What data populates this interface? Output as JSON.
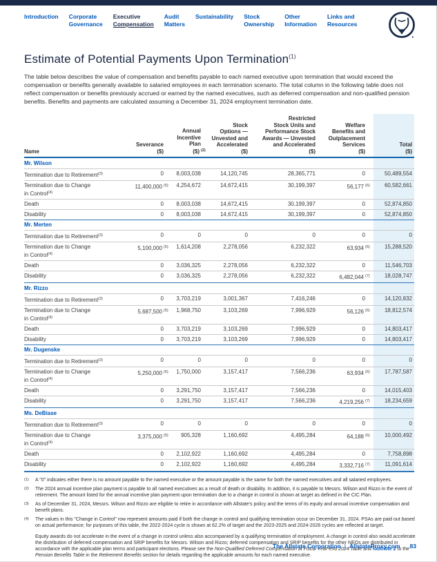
{
  "nav": {
    "items": [
      {
        "lines": [
          "Introduction"
        ],
        "active": false
      },
      {
        "lines": [
          "Corporate",
          "Governance"
        ],
        "active": false
      },
      {
        "lines": [
          "Executive",
          "Compensation"
        ],
        "active": true
      },
      {
        "lines": [
          "Audit",
          "Matters"
        ],
        "active": false
      },
      {
        "lines": [
          "Sustainability"
        ],
        "active": false
      },
      {
        "lines": [
          "Stock",
          "Ownership"
        ],
        "active": false
      },
      {
        "lines": [
          "Other",
          "Information"
        ],
        "active": false
      },
      {
        "lines": [
          "Links and",
          "Resources"
        ],
        "active": false
      }
    ],
    "logo": "allstate-good-hands-logo"
  },
  "title": {
    "text": "Estimate of Potential Payments Upon Termination",
    "sup": "(1)"
  },
  "intro": "The table below describes the value of compensation and benefits payable to each named executive upon termination that would exceed the compensation or benefits generally available to salaried employees in each termination scenario. The total column in the following table does not reflect compensation or benefits previously accrued or earned by the named executives, such as deferred compensation and non-qualified pension benefits. Benefits and payments are calculated assuming a December 31, 2024 employment termination date.",
  "table": {
    "columns": [
      {
        "key": "name",
        "label_lines": [
          "Name"
        ],
        "unit": "",
        "unit_sup": ""
      },
      {
        "key": "sev",
        "label_lines": [
          "Severance"
        ],
        "unit": "($)",
        "unit_sup": ""
      },
      {
        "key": "aip",
        "label_lines": [
          "Annual",
          "Incentive",
          "Plan"
        ],
        "unit": "($)",
        "unit_sup": "(2)"
      },
      {
        "key": "opt",
        "label_lines": [
          "Stock",
          "Options —",
          "Unvested and",
          "Accelerated"
        ],
        "unit": "($)",
        "unit_sup": ""
      },
      {
        "key": "rsu",
        "label_lines": [
          "Restricted",
          "Stock Units and",
          "Performance Stock",
          "Awards — Unvested",
          "and Accelerated"
        ],
        "unit": "($)",
        "unit_sup": ""
      },
      {
        "key": "wel",
        "label_lines": [
          "Welfare",
          "Benefits and",
          "Outplacement",
          "Services"
        ],
        "unit": "($)",
        "unit_sup": ""
      },
      {
        "key": "total",
        "label_lines": [
          "Total"
        ],
        "unit": "($)",
        "unit_sup": ""
      }
    ],
    "executives": [
      {
        "name": "Mr. Wilson",
        "rows": [
          {
            "label_lines": [
              "Termination due to Retirement"
            ],
            "label_sup": "(3)",
            "values": [
              "0",
              "8,003,038",
              "14,120,745",
              "28,365,771",
              "0"
            ],
            "sups": [
              "",
              "",
              "",
              "",
              ""
            ],
            "total": "50,489,554"
          },
          {
            "label_lines": [
              "Termination due to Change",
              "in Control"
            ],
            "label_sup": "(4)",
            "values": [
              "11,400,000",
              "4,254,672",
              "14,672,415",
              "30,199,397",
              "56,177"
            ],
            "sups": [
              "(5)",
              "",
              "",
              "",
              "(6)"
            ],
            "total": "60,582,661"
          },
          {
            "label_lines": [
              "Death"
            ],
            "label_sup": "",
            "values": [
              "0",
              "8,003,038",
              "14,672,415",
              "30,199,397",
              "0"
            ],
            "sups": [
              "",
              "",
              "",
              "",
              ""
            ],
            "total": "52,874,850"
          },
          {
            "label_lines": [
              "Disability"
            ],
            "label_sup": "",
            "values": [
              "0",
              "8,003,038",
              "14,672,415",
              "30,199,397",
              "0"
            ],
            "sups": [
              "",
              "",
              "",
              "",
              ""
            ],
            "total": "52,874,850"
          }
        ]
      },
      {
        "name": "Mr. Merten",
        "rows": [
          {
            "label_lines": [
              "Termination due to Retirement"
            ],
            "label_sup": "(3)",
            "values": [
              "0",
              "0",
              "0",
              "0",
              "0"
            ],
            "sups": [
              "",
              "",
              "",
              "",
              ""
            ],
            "total": "0"
          },
          {
            "label_lines": [
              "Termination due to Change",
              "in Control"
            ],
            "label_sup": "(4)",
            "values": [
              "5,100,000",
              "1,614,208",
              "2,278,056",
              "6,232,322",
              "63,934"
            ],
            "sups": [
              "(5)",
              "",
              "",
              "",
              "(6)"
            ],
            "total": "15,288,520"
          },
          {
            "label_lines": [
              "Death"
            ],
            "label_sup": "",
            "values": [
              "0",
              "3,036,325",
              "2,278,056",
              "6,232,322",
              "0"
            ],
            "sups": [
              "",
              "",
              "",
              "",
              ""
            ],
            "total": "11,546,703"
          },
          {
            "label_lines": [
              "Disability"
            ],
            "label_sup": "",
            "values": [
              "0",
              "3,036,325",
              "2,278,056",
              "6,232,322",
              "6,482,044"
            ],
            "sups": [
              "",
              "",
              "",
              "",
              "(7)"
            ],
            "total": "18,028,747"
          }
        ]
      },
      {
        "name": "Mr. Rizzo",
        "rows": [
          {
            "label_lines": [
              "Termination due to Retirement"
            ],
            "label_sup": "(3)",
            "values": [
              "0",
              "3,703,219",
              "3,001,367",
              "7,416,246",
              "0"
            ],
            "sups": [
              "",
              "",
              "",
              "",
              ""
            ],
            "total": "14,120,832"
          },
          {
            "label_lines": [
              "Termination due to Change",
              "in Control"
            ],
            "label_sup": "(4)",
            "values": [
              "5,687,500",
              "1,968,750",
              "3,103,269",
              "7,996,929",
              "56,126"
            ],
            "sups": [
              "(5)",
              "",
              "",
              "",
              "(6)"
            ],
            "total": "18,812,574"
          },
          {
            "label_lines": [
              "Death"
            ],
            "label_sup": "",
            "values": [
              "0",
              "3,703,219",
              "3,103,269",
              "7,996,929",
              "0"
            ],
            "sups": [
              "",
              "",
              "",
              "",
              ""
            ],
            "total": "14,803,417"
          },
          {
            "label_lines": [
              "Disability"
            ],
            "label_sup": "",
            "values": [
              "0",
              "3,703,219",
              "3,103,269",
              "7,996,929",
              "0"
            ],
            "sups": [
              "",
              "",
              "",
              "",
              ""
            ],
            "total": "14,803,417"
          }
        ]
      },
      {
        "name": "Mr. Dugenske",
        "rows": [
          {
            "label_lines": [
              "Termination due to Retirement"
            ],
            "label_sup": "(3)",
            "values": [
              "0",
              "0",
              "0",
              "0",
              "0"
            ],
            "sups": [
              "",
              "",
              "",
              "",
              ""
            ],
            "total": "0"
          },
          {
            "label_lines": [
              "Termination due to Change",
              "in Control"
            ],
            "label_sup": "(4)",
            "values": [
              "5,250,000",
              "1,750,000",
              "3,157,417",
              "7,566,236",
              "63,934"
            ],
            "sups": [
              "(5)",
              "",
              "",
              "",
              "(6)"
            ],
            "total": "17,787,587"
          },
          {
            "label_lines": [
              "Death"
            ],
            "label_sup": "",
            "values": [
              "0",
              "3,291,750",
              "3,157,417",
              "7,566,236",
              "0"
            ],
            "sups": [
              "",
              "",
              "",
              "",
              ""
            ],
            "total": "14,015,403"
          },
          {
            "label_lines": [
              "Disability"
            ],
            "label_sup": "",
            "values": [
              "0",
              "3,291,750",
              "3,157,417",
              "7,566,236",
              "4,219,256"
            ],
            "sups": [
              "",
              "",
              "",
              "",
              "(7)"
            ],
            "total": "18,234,659"
          }
        ]
      },
      {
        "name": "Ms. DeBiase",
        "rows": [
          {
            "label_lines": [
              "Termination due to Retirement"
            ],
            "label_sup": "(3)",
            "values": [
              "0",
              "0",
              "0",
              "0",
              "0"
            ],
            "sups": [
              "",
              "",
              "",
              "",
              ""
            ],
            "total": "0"
          },
          {
            "label_lines": [
              "Termination due to Change",
              "in Control"
            ],
            "label_sup": "(4)",
            "values": [
              "3,375,000",
              "905,328",
              "1,160,692",
              "4,495,284",
              "64,188"
            ],
            "sups": [
              "(5)",
              "",
              "",
              "",
              "(6)"
            ],
            "total": "10,000,492"
          },
          {
            "label_lines": [
              "Death"
            ],
            "label_sup": "",
            "values": [
              "0",
              "2,102,922",
              "1,160,692",
              "4,495,284",
              "0"
            ],
            "sups": [
              "",
              "",
              "",
              "",
              ""
            ],
            "total": "7,758,898"
          },
          {
            "label_lines": [
              "Disability"
            ],
            "label_sup": "",
            "values": [
              "0",
              "2,102,922",
              "1,160,692",
              "4,495,284",
              "3,332,716"
            ],
            "sups": [
              "",
              "",
              "",
              "",
              "(7)"
            ],
            "total": "11,091,614"
          }
        ]
      }
    ]
  },
  "footnotes": [
    {
      "marker": "(1)",
      "text": "A \"0\" indicates either there is no amount payable to the named executive or the amount payable is the same for both the named executives and all salaried employees."
    },
    {
      "marker": "(2)",
      "text": "The 2024 annual incentive plan payment is payable to all named executives as a result of death or disability. In addition, it is payable to Messrs. Wilson and Rizzo in the event of retirement. The amount listed for the annual incentive plan payment upon termination due to a change in control is shown at target as defined in the CIC Plan."
    },
    {
      "marker": "(3)",
      "text": "As of December 31, 2024, Messrs. Wilson and Rizzo are eligible to retire in accordance with Allstate's policy and the terms of its equity and annual incentive compensation and benefit plans."
    },
    {
      "marker": "(4)",
      "text": "The values in this \"Change in Control\" row represent amounts paid if both the change in control and qualifying termination occur on December 31, 2024. PSAs are paid out based on actual performance; for purposes of this table, the 2022-2024 cycle is shown at 62.2% of target and the 2023-2025 and 2024-2026 cycles are reflected at target."
    }
  ],
  "footnote4_extra": {
    "segments": [
      {
        "style": "plain",
        "t": "Equity awards do not accelerate in the event of a change in control unless also accompanied by a qualifying termination of employment. A change in control also would accelerate the distribution of deferred compensation and SRIP benefits for Messrs. Wilson and Rizzo; deferred compensation and SRIP benefits for the other NEOs are distributed in accordance with the applicable plan terms and participant elections. Please see the "
      },
      {
        "style": "italic",
        "t": "Non-Qualified Deferred Compensation at Fiscal Year-end 2024"
      },
      {
        "style": "plain",
        "t": " Table and "
      },
      {
        "style": "link",
        "t": "footnote 2"
      },
      {
        "style": "plain",
        "t": " to the "
      },
      {
        "style": "italic",
        "t": "Pension Benefits Table"
      },
      {
        "style": "plain",
        "t": " in the "
      },
      {
        "style": "italic",
        "t": "Retirement Benefits"
      },
      {
        "style": "plain",
        "t": " section for details regarding the applicable amounts for each named executive."
      }
    ]
  },
  "footer": {
    "company": "The Allstate Corporation",
    "divider": "|",
    "site": "AllstateProxy.com",
    "page": "83"
  },
  "colors": {
    "brand_blue": "#0057b8",
    "navy": "#1a2b49",
    "total_highlight": "#e4f1f9",
    "rule_blue": "#2e74b5"
  }
}
